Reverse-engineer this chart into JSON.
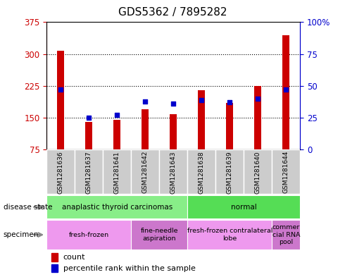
{
  "title": "GDS5362 / 7895282",
  "samples": [
    "GSM1281636",
    "GSM1281637",
    "GSM1281641",
    "GSM1281642",
    "GSM1281643",
    "GSM1281638",
    "GSM1281639",
    "GSM1281640",
    "GSM1281644"
  ],
  "counts": [
    308,
    140,
    145,
    170,
    158,
    215,
    185,
    225,
    345
  ],
  "percentile_ranks": [
    47,
    25,
    27,
    38,
    36,
    39,
    37,
    40,
    47
  ],
  "ylim_left": [
    75,
    375
  ],
  "ylim_right": [
    0,
    100
  ],
  "yticks_left": [
    75,
    150,
    225,
    300,
    375
  ],
  "yticks_right": [
    0,
    25,
    50,
    75,
    100
  ],
  "bar_color": "#cc0000",
  "dot_color": "#0000cc",
  "bar_width": 0.25,
  "disease_state_groups": [
    {
      "label": "anaplastic thyroid carcinomas",
      "start": 0,
      "end": 5,
      "color": "#88ee88"
    },
    {
      "label": "normal",
      "start": 5,
      "end": 9,
      "color": "#55dd55"
    }
  ],
  "specimen_groups": [
    {
      "label": "fresh-frozen",
      "start": 0,
      "end": 3,
      "color": "#ee99ee"
    },
    {
      "label": "fine-needle\naspiration",
      "start": 3,
      "end": 5,
      "color": "#cc77cc"
    },
    {
      "label": "fresh-frozen contralateral\nlobe",
      "start": 5,
      "end": 8,
      "color": "#ee99ee"
    },
    {
      "label": "commer\ncial RNA\npool",
      "start": 8,
      "end": 9,
      "color": "#cc77cc"
    }
  ],
  "grid_dotted_values": [
    150,
    225,
    300
  ],
  "left_axis_color": "#cc0000",
  "right_axis_color": "#0000cc",
  "tick_area_color": "#cccccc",
  "bar_bottom": 75
}
